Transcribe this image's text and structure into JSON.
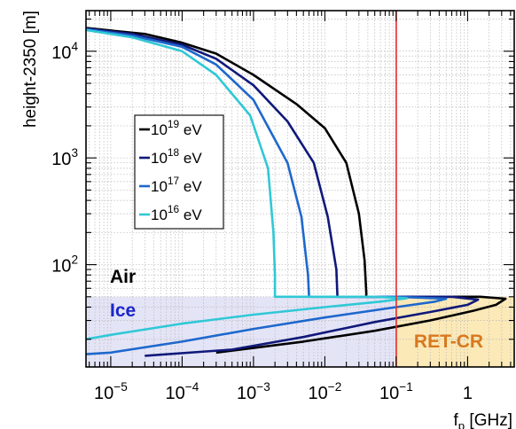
{
  "chart_data": {
    "type": "line",
    "xlabel": "f_p [GHz]",
    "xlabel_base": "f",
    "xlabel_sub": "p",
    "xlabel_unit": " [GHz]",
    "ylabel": "height-2350 [m]",
    "x_scale": "log",
    "y_scale": "log",
    "xlim": [
      4.5e-06,
      4.5
    ],
    "ylim": [
      11,
      24000
    ],
    "grid": true,
    "x_ticks": [
      {
        "value": 1e-05,
        "base": "10",
        "exp": "−5"
      },
      {
        "value": 0.0001,
        "base": "10",
        "exp": "−4"
      },
      {
        "value": 0.001,
        "base": "10",
        "exp": "−3"
      },
      {
        "value": 0.01,
        "base": "10",
        "exp": "−2"
      },
      {
        "value": 0.1,
        "base": "10",
        "exp": "−1"
      },
      {
        "value": 1,
        "base": "1",
        "exp": ""
      }
    ],
    "y_ticks": [
      {
        "value": 100,
        "base": "10",
        "exp": "2"
      },
      {
        "value": 1000,
        "base": "10",
        "exp": "3"
      },
      {
        "value": 10000,
        "base": "10",
        "exp": "4"
      }
    ],
    "interface_height": 50,
    "ice_region": {
      "label": "Ice",
      "color": "#e4e4f7",
      "label_color": "#1b27c9"
    },
    "air_label": {
      "text": "Air",
      "color": "#000000"
    },
    "ret_region": {
      "label": "RET-CR",
      "x_min": 0.1,
      "color": "#fbe9b8",
      "label_color": "#d8781e"
    },
    "vline": {
      "x": 0.1,
      "color": "#e8282c"
    },
    "legend_position": "upper-left",
    "series": [
      {
        "name": "10^19 eV",
        "base": "10",
        "exp": "19",
        "unit": "eV",
        "color": "#000000",
        "points": [
          [
            4.5e-06,
            16500
          ],
          [
            3e-05,
            14500
          ],
          [
            0.0001,
            12000
          ],
          [
            0.0003,
            9500
          ],
          [
            0.001,
            6000
          ],
          [
            0.004,
            3200
          ],
          [
            0.01,
            1900
          ],
          [
            0.02,
            900
          ],
          [
            0.03,
            300
          ],
          [
            0.036,
            110
          ],
          [
            0.038,
            55
          ],
          [
            0.038,
            50
          ],
          [
            0.2,
            50
          ],
          [
            1.5,
            50
          ],
          [
            3.4,
            48
          ],
          [
            2.5,
            42
          ],
          [
            1.2,
            37
          ],
          [
            0.3,
            30
          ],
          [
            0.05,
            24
          ],
          [
            0.005,
            19
          ],
          [
            0.0003,
            15
          ]
        ]
      },
      {
        "name": "10^18 eV",
        "base": "10",
        "exp": "18",
        "unit": "eV",
        "color": "#10197a",
        "points": [
          [
            4.5e-06,
            16300
          ],
          [
            2e-05,
            14500
          ],
          [
            0.0001,
            11500
          ],
          [
            0.0003,
            8500
          ],
          [
            0.001,
            4800
          ],
          [
            0.003,
            2200
          ],
          [
            0.007,
            900
          ],
          [
            0.011,
            280
          ],
          [
            0.0145,
            90
          ],
          [
            0.015,
            50
          ],
          [
            0.1,
            50
          ],
          [
            0.6,
            50
          ],
          [
            1.4,
            47
          ],
          [
            1.0,
            42
          ],
          [
            0.3,
            36
          ],
          [
            0.05,
            29
          ],
          [
            0.005,
            21
          ],
          [
            0.0005,
            16
          ],
          [
            3e-05,
            14
          ]
        ]
      },
      {
        "name": "10^17 eV",
        "base": "10",
        "exp": "17",
        "unit": "eV",
        "color": "#1e68cc",
        "points": [
          [
            4.5e-06,
            16100
          ],
          [
            2e-05,
            14000
          ],
          [
            0.0001,
            11000
          ],
          [
            0.0003,
            7500
          ],
          [
            0.001,
            3500
          ],
          [
            0.003,
            900
          ],
          [
            0.0047,
            280
          ],
          [
            0.0058,
            80
          ],
          [
            0.006,
            50
          ],
          [
            0.1,
            50
          ],
          [
            0.5,
            48
          ],
          [
            0.35,
            45
          ],
          [
            0.1,
            40
          ],
          [
            0.01,
            32
          ],
          [
            0.001,
            25
          ],
          [
            0.0001,
            19
          ],
          [
            1e-05,
            15
          ],
          [
            4.5e-06,
            14.5
          ]
        ]
      },
      {
        "name": "10^16 eV",
        "base": "10",
        "exp": "16",
        "unit": "eV",
        "color": "#30c8d6",
        "points": [
          [
            4.5e-06,
            15800
          ],
          [
            2e-05,
            13500
          ],
          [
            0.0001,
            10000
          ],
          [
            0.0003,
            6000
          ],
          [
            0.0009,
            2500
          ],
          [
            0.0016,
            800
          ],
          [
            0.0019,
            200
          ],
          [
            0.002,
            80
          ],
          [
            0.002,
            50
          ],
          [
            0.05,
            50
          ],
          [
            0.14,
            48.5
          ],
          [
            0.06,
            45
          ],
          [
            0.01,
            40
          ],
          [
            0.001,
            34
          ],
          [
            0.0001,
            28
          ],
          [
            1e-05,
            22
          ],
          [
            4.5e-06,
            20
          ]
        ]
      }
    ]
  }
}
